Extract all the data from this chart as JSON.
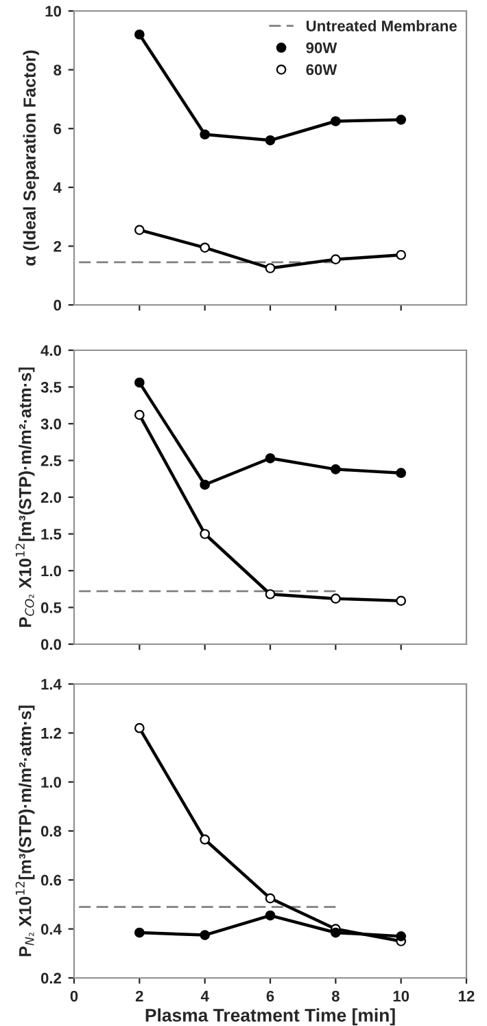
{
  "chart_data": [
    {
      "type": "line",
      "ylabel": "α (Ideal Separation Factor)",
      "xlim": [
        0,
        12
      ],
      "xticks": [
        {
          "value": 2,
          "label": null
        },
        {
          "value": 4,
          "label": null
        },
        {
          "value": 6,
          "label": null
        },
        {
          "value": 8,
          "label": null
        },
        {
          "value": 10,
          "label": null
        }
      ],
      "ylim": [
        0,
        10
      ],
      "yticks": [
        0,
        2,
        4,
        6,
        8,
        10
      ],
      "tick_labels": "y",
      "grid": false,
      "legend": "top right",
      "x": [
        0.15,
        2,
        4,
        6,
        8,
        10
      ],
      "series": [
        {
          "name": "Untreated Membrane",
          "color": "#808080",
          "values": [
            1.45,
            1.45,
            1.45,
            1.45,
            1.45,
            null
          ],
          "line_style": "dashed",
          "marker": "none"
        },
        {
          "name": "90W",
          "color": "#000000",
          "values": [
            null,
            9.2,
            5.8,
            5.6,
            6.25,
            6.3
          ],
          "line_style": "solid",
          "marker": "circle"
        },
        {
          "name": "60W",
          "color": "#000000",
          "values": [
            null,
            2.55,
            1.95,
            1.25,
            1.55,
            1.7
          ],
          "line_style": "solid",
          "marker": "open circle"
        }
      ]
    },
    {
      "type": "line",
      "ylabel": "P$_{CO₂}$ X10$^{12}$[m³(STP)·m/m²·atm·s]",
      "xlim": [
        0,
        12
      ],
      "xticks": [
        {
          "value": 2,
          "label": null
        },
        {
          "value": 4,
          "label": null
        },
        {
          "value": 6,
          "label": null
        },
        {
          "value": 8,
          "label": null
        },
        {
          "value": 10,
          "label": null
        }
      ],
      "ylim": [
        0,
        4
      ],
      "yticks": [
        {
          "value": 0,
          "label": "0.0"
        },
        {
          "value": 0.5,
          "label": "0.5"
        },
        {
          "value": 1,
          "label": "1.0"
        },
        {
          "value": 1.5,
          "label": "1.5"
        },
        {
          "value": 2,
          "label": "2.0"
        },
        {
          "value": 2.5,
          "label": "2.5"
        },
        {
          "value": 3,
          "label": "3.0"
        },
        {
          "value": 3.5,
          "label": "3.5"
        },
        {
          "value": 4,
          "label": "4.0"
        }
      ],
      "tick_labels": "y",
      "grid": false,
      "x": [
        0.15,
        2,
        4,
        6,
        8,
        10
      ],
      "series": [
        {
          "color": "#808080",
          "values": [
            0.72,
            0.72,
            0.72,
            0.72,
            0.72,
            null
          ],
          "line_style": "dashed",
          "marker": "none"
        },
        {
          "color": "#000000",
          "values": [
            null,
            3.56,
            2.17,
            2.53,
            2.38,
            2.33
          ],
          "line_style": "solid",
          "marker": "circle"
        },
        {
          "color": "#000000",
          "values": [
            null,
            3.12,
            1.5,
            0.68,
            0.62,
            0.59
          ],
          "line_style": "solid",
          "marker": "open circle"
        }
      ]
    },
    {
      "type": "line",
      "ylabel": "P$_{N₂}$ X10$^{12}$[m³(STP)·m/m²·atm·s]",
      "xlabel": "Plasma Treatment Time [min]",
      "xlim": [
        0,
        12
      ],
      "xticks": [
        0,
        2,
        4,
        6,
        8,
        10,
        12
      ],
      "ylim": [
        0.2,
        1.4
      ],
      "yticks": [
        0.2,
        0.4,
        0.6,
        0.8,
        {
          "value": 1,
          "label": "1.0"
        },
        1.2,
        1.4
      ],
      "grid": false,
      "x": [
        0.15,
        2,
        4,
        6,
        8,
        10
      ],
      "series": [
        {
          "color": "#808080",
          "values": [
            0.49,
            0.49,
            0.49,
            0.49,
            0.49,
            null
          ],
          "line_style": "dashed",
          "marker": "none"
        },
        {
          "color": "#000000",
          "values": [
            null,
            0.385,
            0.375,
            0.455,
            0.385,
            0.37
          ],
          "line_style": "solid",
          "marker": "circle"
        },
        {
          "color": "#000000",
          "values": [
            null,
            1.22,
            0.765,
            0.525,
            0.4,
            0.35
          ],
          "line_style": "solid",
          "marker": "open circle"
        }
      ]
    }
  ]
}
